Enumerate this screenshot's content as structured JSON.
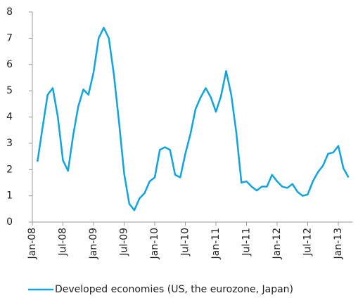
{
  "chart_data": {
    "type": "line",
    "categories": [
      "Jan-08",
      null,
      null,
      null,
      null,
      null,
      "Jul-08",
      null,
      null,
      null,
      null,
      null,
      "Jan-09",
      null,
      null,
      null,
      null,
      null,
      "Jul-09",
      null,
      null,
      null,
      null,
      null,
      "Jan-10",
      null,
      null,
      null,
      null,
      null,
      "Jul-10",
      null,
      null,
      null,
      null,
      null,
      "Jan-11",
      null,
      null,
      null,
      null,
      null,
      "Jul-11",
      null,
      null,
      null,
      null,
      null,
      "Jan-12",
      null,
      null,
      null,
      null,
      null,
      "Jul-12",
      null,
      null,
      null,
      null,
      null,
      "Jan-13",
      null,
      null
    ],
    "series": [
      {
        "name": "Developed economies (US, the eurozone, Japan)",
        "color": "#12a3dd",
        "values": [
          null,
          2.3,
          3.6,
          4.85,
          5.1,
          4.0,
          2.35,
          1.95,
          3.3,
          4.4,
          5.05,
          4.85,
          5.7,
          7.0,
          7.4,
          7.0,
          5.6,
          3.8,
          1.85,
          0.7,
          0.45,
          0.9,
          1.1,
          1.55,
          1.7,
          2.75,
          2.85,
          2.75,
          1.8,
          1.7,
          2.6,
          3.35,
          4.3,
          4.75,
          5.1,
          4.75,
          4.2,
          4.8,
          5.75,
          4.85,
          3.4,
          1.5,
          1.55,
          1.35,
          1.2,
          1.35,
          1.35,
          1.8,
          1.55,
          1.35,
          1.3,
          1.45,
          1.15,
          1.0,
          1.05,
          1.55,
          1.9,
          2.15,
          2.6,
          2.65,
          2.9,
          2.05,
          1.7
        ]
      }
    ],
    "ylim": [
      0,
      8
    ],
    "yticks": [
      0,
      1,
      2,
      3,
      4,
      5,
      6,
      7,
      8
    ],
    "legend": "bottom"
  }
}
